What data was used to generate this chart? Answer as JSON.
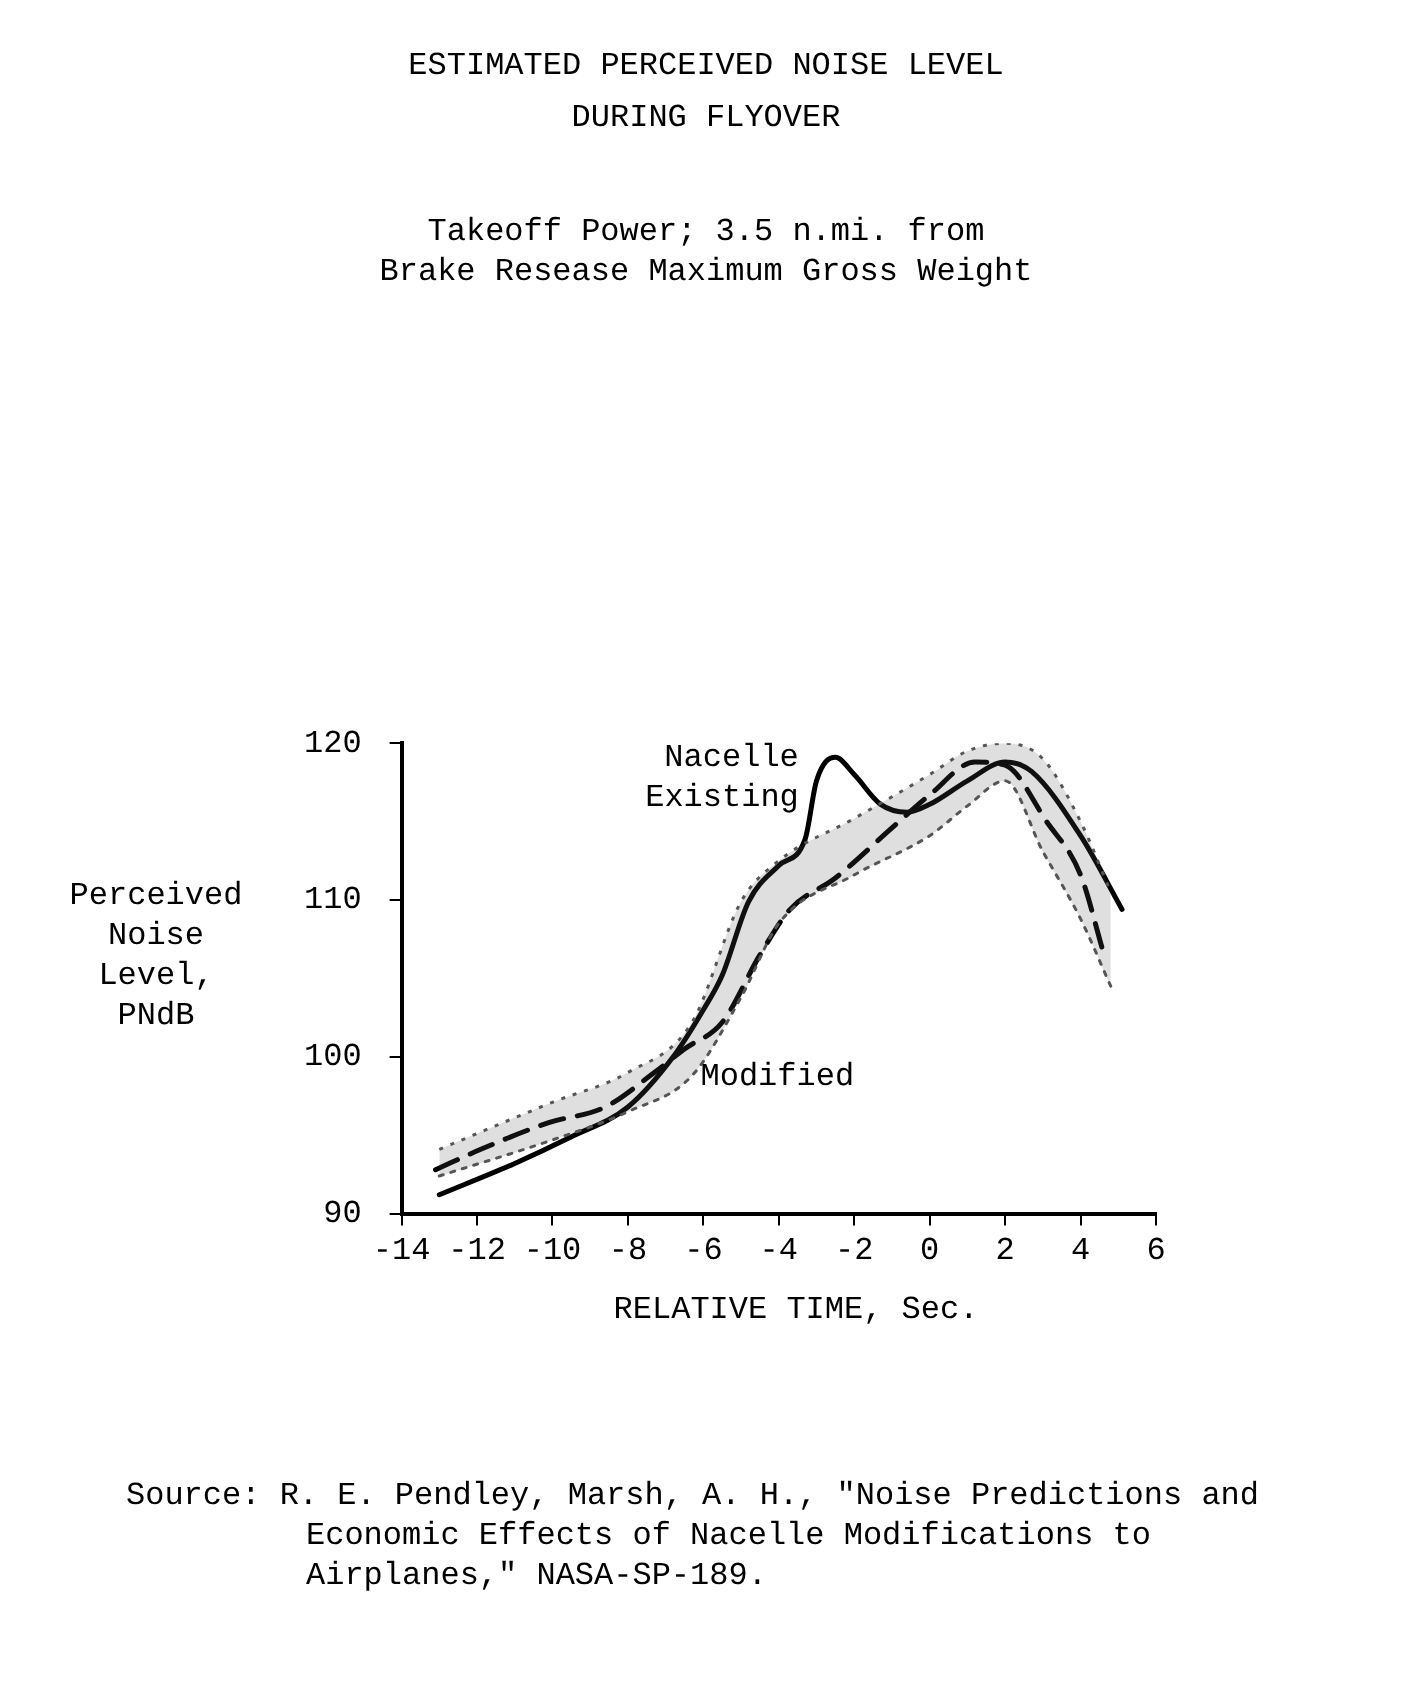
{
  "chart_data": {
    "type": "line",
    "title": "ESTIMATED PERCEIVED NOISE LEVEL\nDURING FLYOVER",
    "subtitle": "Takeoff Power; 3.5 n.mi. from\nBrake Resease Maximum Gross Weight",
    "xlabel": "RELATIVE TIME, Sec.",
    "ylabel": "Perceived\nNoise\nLevel,\nPNdB",
    "annotations": [
      "Source: R. E. Pendley, Marsh, A. H., \"Noise Predictions and Economic Effects of Nacelle Modifications to Airplanes,\" NASA-SP-189."
    ],
    "xlim": [
      -14,
      6
    ],
    "xticks": [
      -14,
      -12,
      -10,
      -8,
      -6,
      -4,
      -2,
      0,
      2,
      4,
      6
    ],
    "ylim": [
      90,
      120
    ],
    "yticks": [
      90,
      100,
      110,
      120
    ],
    "grid": false,
    "legend": false,
    "marker": "none",
    "series": [
      {
        "color": "#555555",
        "line_style": "dotted",
        "x": [
          -13,
          -10,
          -8,
          -6.3,
          -5,
          -4,
          -2,
          0,
          1,
          2,
          3,
          4,
          4.8
        ],
        "values": [
          92.4,
          94.7,
          96.5,
          98.8,
          103.8,
          108.5,
          111.6,
          114.1,
          116.0,
          117.6,
          113.1,
          108.8,
          104.5
        ]
      },
      {
        "type": "area",
        "color": "#555555",
        "line_style": "dotted",
        "x": [
          -13,
          -10,
          -8,
          -6.3,
          -5,
          -4,
          -2,
          0,
          1,
          2,
          3,
          4,
          4.8
        ],
        "values": [
          94.1,
          97.1,
          99.0,
          102.2,
          109.9,
          112.5,
          115.2,
          118.0,
          119.5,
          120,
          119.0,
          115.0,
          110.5
        ]
      },
      {
        "name": "Nacelle\nExisting",
        "color": "#000000",
        "line_style": "solid",
        "x": [
          -13,
          -11,
          -9.5,
          -8,
          -6.8,
          -6,
          -5.5,
          -4.8,
          -4,
          -3.3,
          -3,
          -2.5,
          -2,
          -1.3,
          -0.6,
          0,
          1,
          2,
          2.7,
          4,
          5.1
        ],
        "values": [
          91.2,
          93.2,
          94.9,
          96.8,
          100.0,
          103.0,
          105.2,
          109.9,
          112.2,
          113.9,
          117.6,
          119.1,
          118.0,
          116.1,
          115.6,
          116.1,
          117.6,
          118.8,
          118.2,
          114.1,
          109.4
        ]
      },
      {
        "name": "Modified",
        "color": "#000000",
        "line_style": "dashed",
        "x": [
          -13.1,
          -11.9,
          -10.1,
          -8.6,
          -7.3,
          -6.5,
          -5.5,
          -4.5,
          -3.7,
          -2.5,
          -1,
          0,
          1.2,
          2,
          3.1,
          4,
          4.6
        ],
        "values": [
          92.8,
          94.1,
          95.8,
          96.8,
          99.0,
          100.5,
          102.2,
          106.5,
          109.4,
          111.4,
          114.6,
          116.7,
          118.8,
          118.6,
          115.0,
          111.6,
          106.7
        ]
      }
    ]
  }
}
